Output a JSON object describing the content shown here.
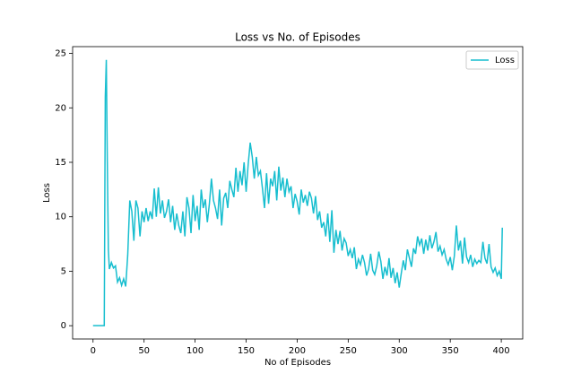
{
  "chart_data": {
    "type": "line",
    "title": "Loss vs No. of Episodes",
    "x_label": "No of Episodes",
    "y_label": "Loss",
    "x": [
      0,
      3,
      6,
      9,
      11,
      12,
      13,
      14,
      15,
      16,
      18,
      20,
      22,
      24,
      26,
      28,
      30,
      32,
      34,
      36,
      38,
      40,
      42,
      44,
      46,
      48,
      50,
      52,
      54,
      56,
      58,
      60,
      62,
      64,
      66,
      68,
      70,
      72,
      74,
      76,
      78,
      80,
      82,
      84,
      86,
      88,
      90,
      92,
      94,
      96,
      98,
      100,
      102,
      104,
      106,
      108,
      110,
      112,
      114,
      116,
      118,
      120,
      122,
      124,
      126,
      128,
      130,
      132,
      134,
      136,
      138,
      140,
      142,
      144,
      146,
      148,
      150,
      152,
      154,
      156,
      158,
      160,
      162,
      164,
      166,
      168,
      170,
      172,
      174,
      176,
      178,
      180,
      182,
      184,
      186,
      188,
      190,
      192,
      194,
      196,
      198,
      200,
      202,
      204,
      206,
      208,
      210,
      212,
      214,
      216,
      218,
      220,
      222,
      224,
      226,
      228,
      230,
      232,
      234,
      236,
      238,
      240,
      242,
      244,
      246,
      248,
      250,
      252,
      254,
      256,
      258,
      260,
      262,
      264,
      266,
      268,
      270,
      272,
      274,
      276,
      278,
      280,
      282,
      284,
      286,
      288,
      290,
      292,
      294,
      296,
      298,
      300,
      302,
      304,
      306,
      308,
      310,
      312,
      314,
      316,
      318,
      320,
      322,
      324,
      326,
      328,
      330,
      332,
      334,
      336,
      338,
      340,
      342,
      344,
      346,
      348,
      350,
      352,
      354,
      356,
      358,
      360,
      362,
      364,
      366,
      368,
      370,
      372,
      374,
      376,
      378,
      380,
      382,
      384,
      386,
      388,
      390,
      392,
      394,
      396,
      398,
      400,
      401
    ],
    "series": [
      {
        "name": "Loss",
        "color": "#17becf",
        "values": [
          0,
          0,
          0,
          0,
          0,
          21,
          24.4,
          15,
          7,
          5.2,
          5.8,
          5.3,
          5.5,
          4,
          4.4,
          3.7,
          4.3,
          3.6,
          6.5,
          11.5,
          10.5,
          7.8,
          11.5,
          10.8,
          8.2,
          10.5,
          9.5,
          10.8,
          9.6,
          10.5,
          9.8,
          12.6,
          10,
          12.7,
          10.3,
          11.5,
          9.9,
          10.5,
          11.6,
          9.5,
          11,
          8.8,
          10.3,
          9.2,
          8.5,
          10.5,
          8.2,
          11.8,
          10.8,
          8.5,
          12,
          9.6,
          11,
          8.8,
          12.5,
          10.8,
          11.6,
          9.5,
          11.2,
          13.5,
          11.5,
          10.8,
          9.8,
          12.5,
          9.2,
          11.7,
          12.2,
          10.8,
          13.3,
          12.5,
          11.8,
          14.5,
          12.3,
          14.2,
          12.9,
          15,
          12.3,
          14.8,
          16.8,
          15.5,
          13.5,
          15.5,
          13.8,
          14.2,
          12.6,
          10.8,
          14,
          11.2,
          13.5,
          12.8,
          14.2,
          11.5,
          14.6,
          12.4,
          13.6,
          11.8,
          13.5,
          12.3,
          12.8,
          10.8,
          12.1,
          11.4,
          10.2,
          12.5,
          11.3,
          12,
          11,
          12.3,
          11.7,
          10.3,
          11.9,
          9.7,
          10.5,
          9,
          9.5,
          8.2,
          10.3,
          7.7,
          10.6,
          6.7,
          8.8,
          7.5,
          8.7,
          6.9,
          8,
          7.6,
          6.4,
          7,
          6.2,
          7.2,
          5.2,
          6.1,
          5.6,
          6.5,
          5.8,
          4.6,
          5.2,
          6.6,
          5.1,
          4.7,
          5.5,
          6.8,
          5.9,
          4.3,
          5.4,
          4.6,
          6.2,
          4.4,
          5.3,
          3.9,
          4.9,
          3.5,
          4.8,
          6,
          5.1,
          7,
          6.2,
          5.4,
          7.1,
          6.6,
          8.2,
          7.4,
          8,
          6.6,
          7.9,
          6.9,
          8.3,
          7.1,
          7.7,
          8.6,
          6.8,
          7.3,
          6.5,
          7,
          6.1,
          5.6,
          6.3,
          5.1,
          6.4,
          9.2,
          6.9,
          7.8,
          5.7,
          8.1,
          6.3,
          5.8,
          6.5,
          5.4,
          6.1,
          5.7,
          6,
          5.8,
          7.7,
          6.2,
          5.7,
          7.5,
          5.4,
          4.9,
          5.3,
          4.6,
          5,
          4.3,
          9
        ]
      }
    ],
    "xlim": [
      -20,
      421
    ],
    "ylim": [
      -1.22,
      25.62
    ],
    "xticks": [
      0,
      50,
      100,
      150,
      200,
      250,
      300,
      350,
      400
    ],
    "yticks": [
      0,
      5,
      10,
      15,
      20,
      25
    ],
    "legend": "upper right"
  }
}
